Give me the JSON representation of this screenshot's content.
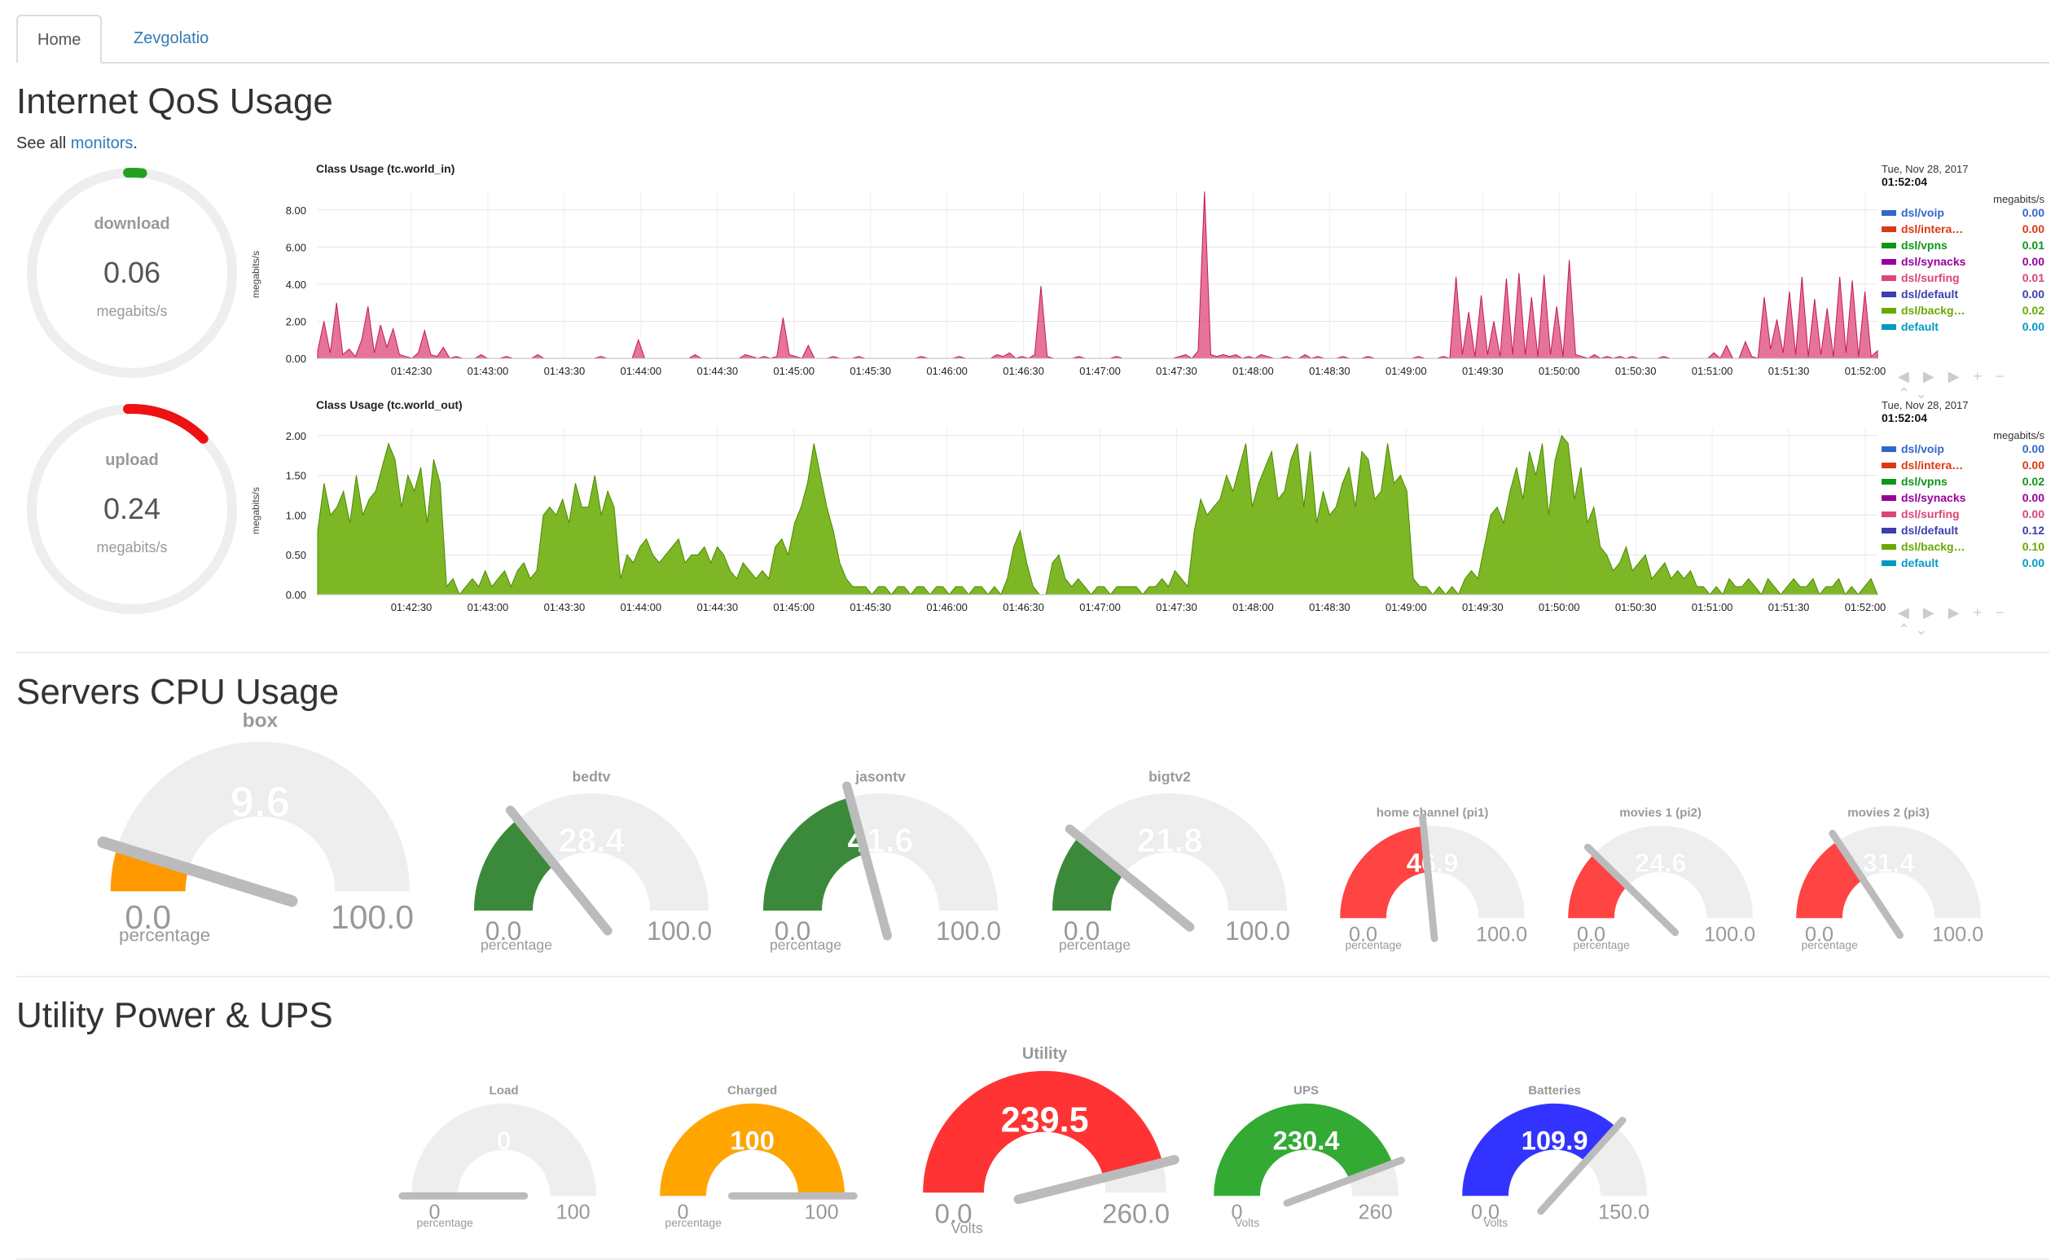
{
  "tabs": [
    {
      "label": "Home",
      "active": true
    },
    {
      "label": "Zevgolatio",
      "active": false
    }
  ],
  "qos": {
    "title": "Internet QoS Usage",
    "note_prefix": "See all ",
    "note_link": "monitors",
    "note_suffix": ".",
    "dials": [
      {
        "label": "download",
        "value": "0.06",
        "unit": "megabits/s",
        "color": "#22a022",
        "level": 0.01
      },
      {
        "label": "upload",
        "value": "0.24",
        "unit": "megabits/s",
        "color": "#ee1111",
        "level": 0.12
      }
    ]
  },
  "legend_date": "Tue, Nov 28, 2017",
  "legend_time": "01:52:04",
  "legend_unit": "megabits/s",
  "legend_series": [
    {
      "name": "dsl/voip",
      "color": "#3366cc"
    },
    {
      "name": "dsl/intera…",
      "color": "#dc3912"
    },
    {
      "name": "dsl/vpns",
      "color": "#109618"
    },
    {
      "name": "dsl/synacks",
      "color": "#990099"
    },
    {
      "name": "dsl/surfing",
      "color": "#dd4477"
    },
    {
      "name": "dsl/default",
      "color": "#3b3eac"
    },
    {
      "name": "dsl/backg…",
      "color": "#66aa00"
    },
    {
      "name": "default",
      "color": "#0099c6"
    }
  ],
  "chart_data": [
    {
      "type": "area",
      "title": "Class Usage (tc.world_in)",
      "ylabel": "megabits/s",
      "ylim": [
        0,
        9.0
      ],
      "yticks": [
        "0.00",
        "2.00",
        "4.00",
        "6.00",
        "8.00"
      ],
      "xticks": [
        "01:42:30",
        "01:43:00",
        "01:43:30",
        "01:44:00",
        "01:44:30",
        "01:45:00",
        "01:45:30",
        "01:46:00",
        "01:46:30",
        "01:47:00",
        "01:47:30",
        "01:48:00",
        "01:48:30",
        "01:49:00",
        "01:49:30",
        "01:50:00",
        "01:50:30",
        "01:51:00",
        "01:51:30",
        "01:52:00"
      ],
      "grid": true,
      "legend_values": [
        "0.00",
        "0.00",
        "0.01",
        "0.00",
        "0.01",
        "0.00",
        "0.02",
        "0.00"
      ],
      "series_main": "dsl/surfing",
      "values": [
        0.4,
        2.0,
        0.3,
        3.0,
        0.2,
        0.5,
        0.1,
        1.0,
        2.8,
        0.3,
        1.8,
        0.6,
        1.6,
        0.2,
        0.1,
        0.0,
        0.3,
        1.5,
        0.2,
        0.1,
        0.6,
        0.0,
        0.1,
        0.0,
        0.0,
        0.0,
        0.2,
        0.0,
        0.0,
        0.0,
        0.1,
        0.0,
        0.0,
        0.0,
        0.0,
        0.2,
        0.0,
        0.0,
        0.0,
        0.0,
        0.0,
        0.0,
        0.0,
        0.0,
        0.0,
        0.1,
        0.0,
        0.0,
        0.0,
        0.0,
        0.0,
        1.0,
        0.0,
        0.0,
        0.0,
        0.0,
        0.0,
        0.0,
        0.0,
        0.0,
        0.2,
        0.0,
        0.0,
        0.0,
        0.0,
        0.0,
        0.0,
        0.0,
        0.2,
        0.1,
        0.0,
        0.1,
        0.0,
        0.1,
        2.2,
        0.2,
        0.1,
        0.0,
        0.7,
        0.0,
        0.0,
        0.0,
        0.1,
        0.0,
        0.0,
        0.0,
        0.1,
        0.0,
        0.0,
        0.0,
        0.0,
        0.0,
        0.0,
        0.0,
        0.0,
        0.0,
        0.1,
        0.0,
        0.0,
        0.0,
        0.0,
        0.0,
        0.1,
        0.0,
        0.0,
        0.0,
        0.0,
        0.0,
        0.2,
        0.1,
        0.3,
        0.0,
        0.1,
        0.0,
        0.2,
        3.9,
        0.1,
        0.0,
        0.0,
        0.0,
        0.0,
        0.1,
        0.0,
        0.0,
        0.0,
        0.0,
        0.0,
        0.1,
        0.0,
        0.0,
        0.0,
        0.0,
        0.0,
        0.0,
        0.0,
        0.0,
        0.0,
        0.1,
        0.2,
        0.0,
        0.4,
        9.0,
        0.2,
        0.1,
        0.2,
        0.1,
        0.2,
        0.0,
        0.1,
        0.0,
        0.2,
        0.1,
        0.0,
        0.0,
        0.1,
        0.0,
        0.0,
        0.2,
        0.0,
        0.1,
        0.0,
        0.0,
        0.0,
        0.1,
        0.0,
        0.0,
        0.0,
        0.1,
        0.0,
        0.0,
        0.0,
        0.0,
        0.0,
        0.0,
        0.0,
        0.1,
        0.0,
        0.0,
        0.0,
        0.1,
        0.0,
        4.4,
        0.2,
        2.5,
        0.1,
        3.4,
        0.2,
        2.0,
        0.1,
        4.3,
        0.2,
        4.6,
        0.2,
        3.3,
        0.1,
        4.5,
        0.2,
        2.8,
        0.1,
        5.3,
        0.2,
        0.1,
        0.0,
        0.2,
        0.0,
        0.1,
        0.0,
        0.1,
        0.0,
        0.1,
        0.0,
        0.0,
        0.0,
        0.0,
        0.1,
        0.0,
        0.0,
        0.0,
        0.0,
        0.0,
        0.0,
        0.0,
        0.3,
        0.0,
        0.7,
        0.0,
        0.0,
        0.9,
        0.1,
        0.0,
        3.3,
        0.5,
        2.1,
        0.3,
        3.6,
        0.2,
        4.4,
        0.1,
        3.2,
        0.2,
        2.7,
        0.1,
        4.4,
        0.3,
        4.2,
        0.1,
        3.6,
        0.1,
        0.4
      ]
    },
    {
      "type": "area",
      "title": "Class Usage (tc.world_out)",
      "ylabel": "megabits/s",
      "ylim": [
        0,
        2.1
      ],
      "yticks": [
        "0.00",
        "0.50",
        "1.00",
        "1.50",
        "2.00"
      ],
      "xticks": [
        "01:42:30",
        "01:43:00",
        "01:43:30",
        "01:44:00",
        "01:44:30",
        "01:45:00",
        "01:45:30",
        "01:46:00",
        "01:46:30",
        "01:47:00",
        "01:47:30",
        "01:48:00",
        "01:48:30",
        "01:49:00",
        "01:49:30",
        "01:50:00",
        "01:50:30",
        "01:51:00",
        "01:51:30",
        "01:52:00"
      ],
      "grid": true,
      "legend_values": [
        "0.00",
        "0.00",
        "0.02",
        "0.00",
        "0.00",
        "0.12",
        "0.10",
        "0.00"
      ],
      "series_main": "dsl/backg…",
      "values": [
        0.8,
        1.4,
        1.0,
        1.1,
        1.3,
        0.9,
        1.5,
        1.0,
        1.2,
        1.3,
        1.6,
        1.9,
        1.7,
        1.1,
        1.5,
        1.3,
        1.6,
        0.9,
        1.7,
        1.4,
        0.1,
        0.2,
        0.0,
        0.1,
        0.2,
        0.1,
        0.3,
        0.1,
        0.2,
        0.3,
        0.1,
        0.3,
        0.4,
        0.2,
        0.3,
        1.0,
        1.1,
        1.0,
        1.2,
        0.9,
        1.4,
        1.1,
        1.1,
        1.5,
        1.0,
        1.3,
        1.1,
        0.2,
        0.5,
        0.4,
        0.6,
        0.7,
        0.5,
        0.4,
        0.5,
        0.6,
        0.7,
        0.4,
        0.5,
        0.5,
        0.6,
        0.4,
        0.6,
        0.5,
        0.3,
        0.2,
        0.4,
        0.3,
        0.2,
        0.3,
        0.2,
        0.6,
        0.7,
        0.5,
        0.9,
        1.1,
        1.4,
        1.9,
        1.5,
        1.1,
        0.8,
        0.4,
        0.2,
        0.1,
        0.1,
        0.1,
        0.0,
        0.1,
        0.1,
        0.0,
        0.1,
        0.1,
        0.0,
        0.1,
        0.1,
        0.0,
        0.1,
        0.1,
        0.0,
        0.1,
        0.1,
        0.0,
        0.1,
        0.1,
        0.0,
        0.1,
        0.0,
        0.2,
        0.6,
        0.8,
        0.4,
        0.1,
        0.0,
        0.0,
        0.4,
        0.5,
        0.2,
        0.1,
        0.2,
        0.1,
        0.0,
        0.1,
        0.1,
        0.0,
        0.1,
        0.1,
        0.1,
        0.1,
        0.0,
        0.1,
        0.1,
        0.2,
        0.1,
        0.3,
        0.2,
        0.1,
        0.8,
        1.2,
        1.0,
        1.1,
        1.2,
        1.5,
        1.3,
        1.6,
        1.9,
        1.1,
        1.4,
        1.6,
        1.8,
        1.2,
        1.3,
        1.7,
        1.9,
        1.1,
        1.8,
        0.9,
        1.3,
        1.0,
        1.1,
        1.4,
        1.6,
        1.1,
        1.8,
        1.7,
        1.2,
        1.3,
        1.9,
        1.4,
        1.5,
        1.3,
        0.2,
        0.1,
        0.1,
        0.0,
        0.1,
        0.0,
        0.1,
        0.0,
        0.2,
        0.3,
        0.2,
        0.6,
        1.0,
        1.1,
        0.9,
        1.3,
        1.6,
        1.2,
        1.8,
        1.5,
        1.9,
        1.0,
        1.7,
        2.0,
        1.9,
        1.2,
        1.6,
        0.9,
        1.1,
        0.6,
        0.5,
        0.3,
        0.4,
        0.6,
        0.3,
        0.4,
        0.5,
        0.2,
        0.3,
        0.4,
        0.2,
        0.3,
        0.2,
        0.3,
        0.1,
        0.1,
        0.0,
        0.1,
        0.0,
        0.2,
        0.1,
        0.1,
        0.2,
        0.1,
        0.0,
        0.2,
        0.1,
        0.0,
        0.1,
        0.2,
        0.1,
        0.1,
        0.2,
        0.0,
        0.1,
        0.1,
        0.2,
        0.0,
        0.1,
        0.0,
        0.1,
        0.2,
        0.0
      ]
    }
  ],
  "cpu": {
    "title": "Servers CPU Usage",
    "gauges": [
      {
        "label": "box",
        "value": "9.6",
        "level": 0.096,
        "min": "0.0",
        "max": "100.0",
        "unit": "percentage",
        "color": "#ff9900"
      },
      {
        "label": "bedtv",
        "value": "28.4",
        "level": 0.284,
        "min": "0.0",
        "max": "100.0",
        "unit": "percentage",
        "color": "#3b8a3b"
      },
      {
        "label": "jasontv",
        "value": "41.6",
        "level": 0.416,
        "min": "0.0",
        "max": "100.0",
        "unit": "percentage",
        "color": "#3b8a3b"
      },
      {
        "label": "bigtv2",
        "value": "21.8",
        "level": 0.218,
        "min": "0.0",
        "max": "100.0",
        "unit": "percentage",
        "color": "#3b8a3b"
      },
      {
        "label": "home channel (pi1)",
        "value": "46.9",
        "level": 0.469,
        "min": "0.0",
        "max": "100.0",
        "unit": "percentage",
        "color": "#ff4444"
      },
      {
        "label": "movies 1 (pi2)",
        "value": "24.6",
        "level": 0.246,
        "min": "0.0",
        "max": "100.0",
        "unit": "percentage",
        "color": "#ff4444"
      },
      {
        "label": "movies 2 (pi3)",
        "value": "31.4",
        "level": 0.314,
        "min": "0.0",
        "max": "100.0",
        "unit": "percentage",
        "color": "#ff4444"
      }
    ]
  },
  "power": {
    "title": "Utility Power & UPS",
    "gauges": [
      {
        "label": "Load",
        "value": "0",
        "level": 0.0,
        "min": "0",
        "max": "100",
        "unit": "percentage",
        "color": "#eeeeee"
      },
      {
        "label": "Charged",
        "value": "100",
        "level": 1.0,
        "min": "0",
        "max": "100",
        "unit": "percentage",
        "color": "#ffa500"
      },
      {
        "label": "Utility",
        "value": "239.5",
        "level": 0.921,
        "min": "0.0",
        "max": "260.0",
        "unit": "Volts",
        "color": "#ff3333"
      },
      {
        "label": "UPS",
        "value": "230.4",
        "level": 0.886,
        "min": "0",
        "max": "260",
        "unit": "Volts",
        "color": "#33aa33"
      },
      {
        "label": "Batteries",
        "value": "109.9",
        "level": 0.733,
        "min": "0.0",
        "max": "150.0",
        "unit": "Volts",
        "color": "#3333ff"
      }
    ]
  }
}
